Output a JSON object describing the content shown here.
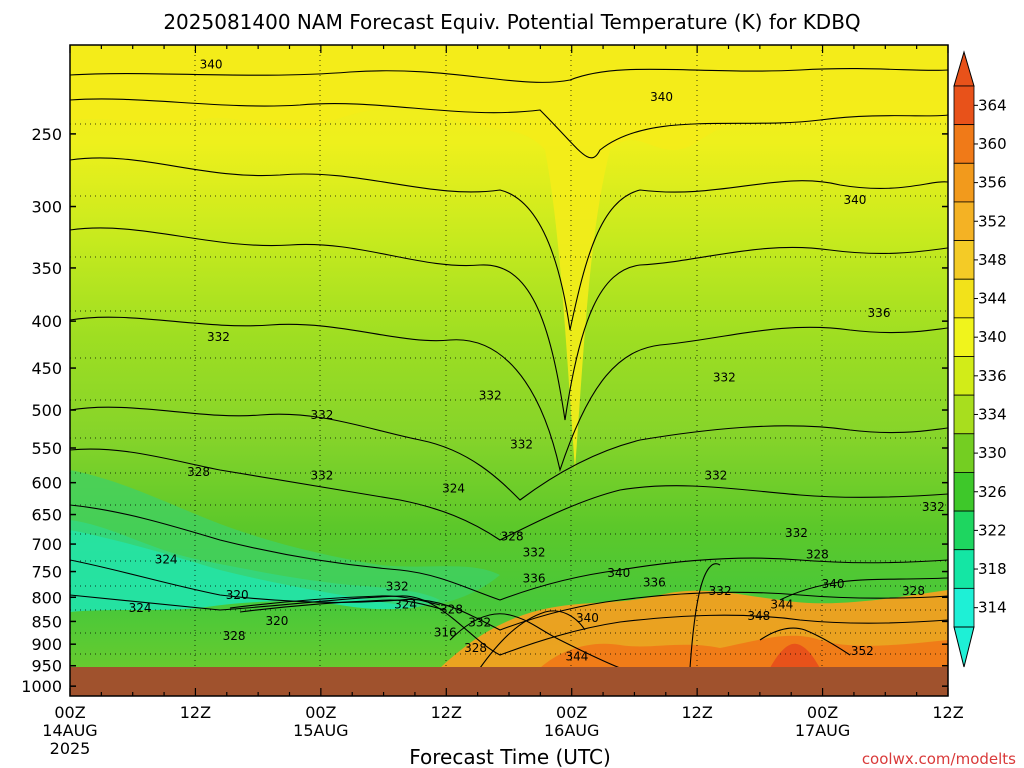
{
  "chart_data": {
    "type": "heatmap",
    "title": "2025081400 NAM Forecast Equiv. Potential Temperature (K) for KDBQ",
    "xlabel": "Forecast Time (UTC)",
    "ylabel": "",
    "credit": "coolwx.com/modelts",
    "x_ticks": [
      {
        "hours": 0,
        "label": "00Z",
        "sub": "14AUG",
        "sub2": "2025"
      },
      {
        "hours": 12,
        "label": "12Z",
        "sub": "",
        "sub2": ""
      },
      {
        "hours": 24,
        "label": "00Z",
        "sub": "15AUG",
        "sub2": ""
      },
      {
        "hours": 36,
        "label": "12Z",
        "sub": "",
        "sub2": ""
      },
      {
        "hours": 48,
        "label": "00Z",
        "sub": "16AUG",
        "sub2": ""
      },
      {
        "hours": 60,
        "label": "12Z",
        "sub": "",
        "sub2": ""
      },
      {
        "hours": 72,
        "label": "00Z",
        "sub": "17AUG",
        "sub2": ""
      },
      {
        "hours": 84,
        "label": "12Z",
        "sub": "",
        "sub2": ""
      }
    ],
    "xlim_hours": [
      0,
      84
    ],
    "y_ticks": [
      "250",
      "300",
      "350",
      "400",
      "450",
      "500",
      "550",
      "600",
      "650",
      "700",
      "750",
      "800",
      "850",
      "900",
      "950",
      "1000"
    ],
    "ylim_hpa": [
      200,
      1025
    ],
    "y_scale": "log",
    "grid": true,
    "colorbar": {
      "labels": [
        "364",
        "360",
        "356",
        "352",
        "348",
        "344",
        "340",
        "336",
        "334",
        "330",
        "326",
        "322",
        "318",
        "314"
      ],
      "levels": [
        364,
        360,
        356,
        352,
        348,
        344,
        340,
        336,
        334,
        330,
        326,
        322,
        318,
        314
      ],
      "colors": [
        "#e8521a",
        "#f07a18",
        "#f29a1c",
        "#f4b224",
        "#f4cb26",
        "#f2e21a",
        "#f0f41c",
        "#d2ec18",
        "#a8de1e",
        "#74ce22",
        "#3ec82a",
        "#1ed660",
        "#14e6a4",
        "#1ef0d6"
      ],
      "placement": "right"
    },
    "ground_color": "#a0522d",
    "contour_labels": [
      {
        "text": "340",
        "hours": 13.5,
        "hpa": 210
      },
      {
        "text": "340",
        "hours": 56.6,
        "hpa": 228
      },
      {
        "text": "340",
        "hours": 75.1,
        "hpa": 295
      },
      {
        "text": "336",
        "hours": 77.4,
        "hpa": 392
      },
      {
        "text": "332",
        "hours": 14.2,
        "hpa": 416
      },
      {
        "text": "332",
        "hours": 62.6,
        "hpa": 461
      },
      {
        "text": "332",
        "hours": 40.2,
        "hpa": 482
      },
      {
        "text": "332",
        "hours": 24.1,
        "hpa": 506
      },
      {
        "text": "332",
        "hours": 43.2,
        "hpa": 545
      },
      {
        "text": "328",
        "hours": 12.3,
        "hpa": 584
      },
      {
        "text": "332",
        "hours": 24.1,
        "hpa": 589
      },
      {
        "text": "332",
        "hours": 61.8,
        "hpa": 589
      },
      {
        "text": "324",
        "hours": 36.7,
        "hpa": 609
      },
      {
        "text": "332",
        "hours": 82.6,
        "hpa": 638
      },
      {
        "text": "332",
        "hours": 69.5,
        "hpa": 681
      },
      {
        "text": "328",
        "hours": 42.3,
        "hpa": 687
      },
      {
        "text": "332",
        "hours": 44.4,
        "hpa": 715
      },
      {
        "text": "328",
        "hours": 71.5,
        "hpa": 719
      },
      {
        "text": "324",
        "hours": 9.2,
        "hpa": 728
      },
      {
        "text": "336",
        "hours": 44.4,
        "hpa": 763
      },
      {
        "text": "340",
        "hours": 52.5,
        "hpa": 753
      },
      {
        "text": "336",
        "hours": 55.9,
        "hpa": 771
      },
      {
        "text": "340",
        "hours": 73.0,
        "hpa": 774
      },
      {
        "text": "332",
        "hours": 31.3,
        "hpa": 779
      },
      {
        "text": "320",
        "hours": 16.0,
        "hpa": 795
      },
      {
        "text": "332",
        "hours": 62.2,
        "hpa": 788
      },
      {
        "text": "328",
        "hours": 80.7,
        "hpa": 788
      },
      {
        "text": "324",
        "hours": 32.1,
        "hpa": 815
      },
      {
        "text": "344",
        "hours": 68.1,
        "hpa": 815
      },
      {
        "text": "324",
        "hours": 6.7,
        "hpa": 822
      },
      {
        "text": "328",
        "hours": 36.5,
        "hpa": 825
      },
      {
        "text": "348",
        "hours": 65.9,
        "hpa": 838
      },
      {
        "text": "340",
        "hours": 49.5,
        "hpa": 843
      },
      {
        "text": "320",
        "hours": 19.8,
        "hpa": 849
      },
      {
        "text": "332",
        "hours": 39.2,
        "hpa": 852
      },
      {
        "text": "316",
        "hours": 35.9,
        "hpa": 874
      },
      {
        "text": "328",
        "hours": 15.7,
        "hpa": 882
      },
      {
        "text": "328",
        "hours": 38.8,
        "hpa": 909
      },
      {
        "text": "352",
        "hours": 75.8,
        "hpa": 916
      },
      {
        "text": "344",
        "hours": 48.5,
        "hpa": 928
      }
    ]
  }
}
